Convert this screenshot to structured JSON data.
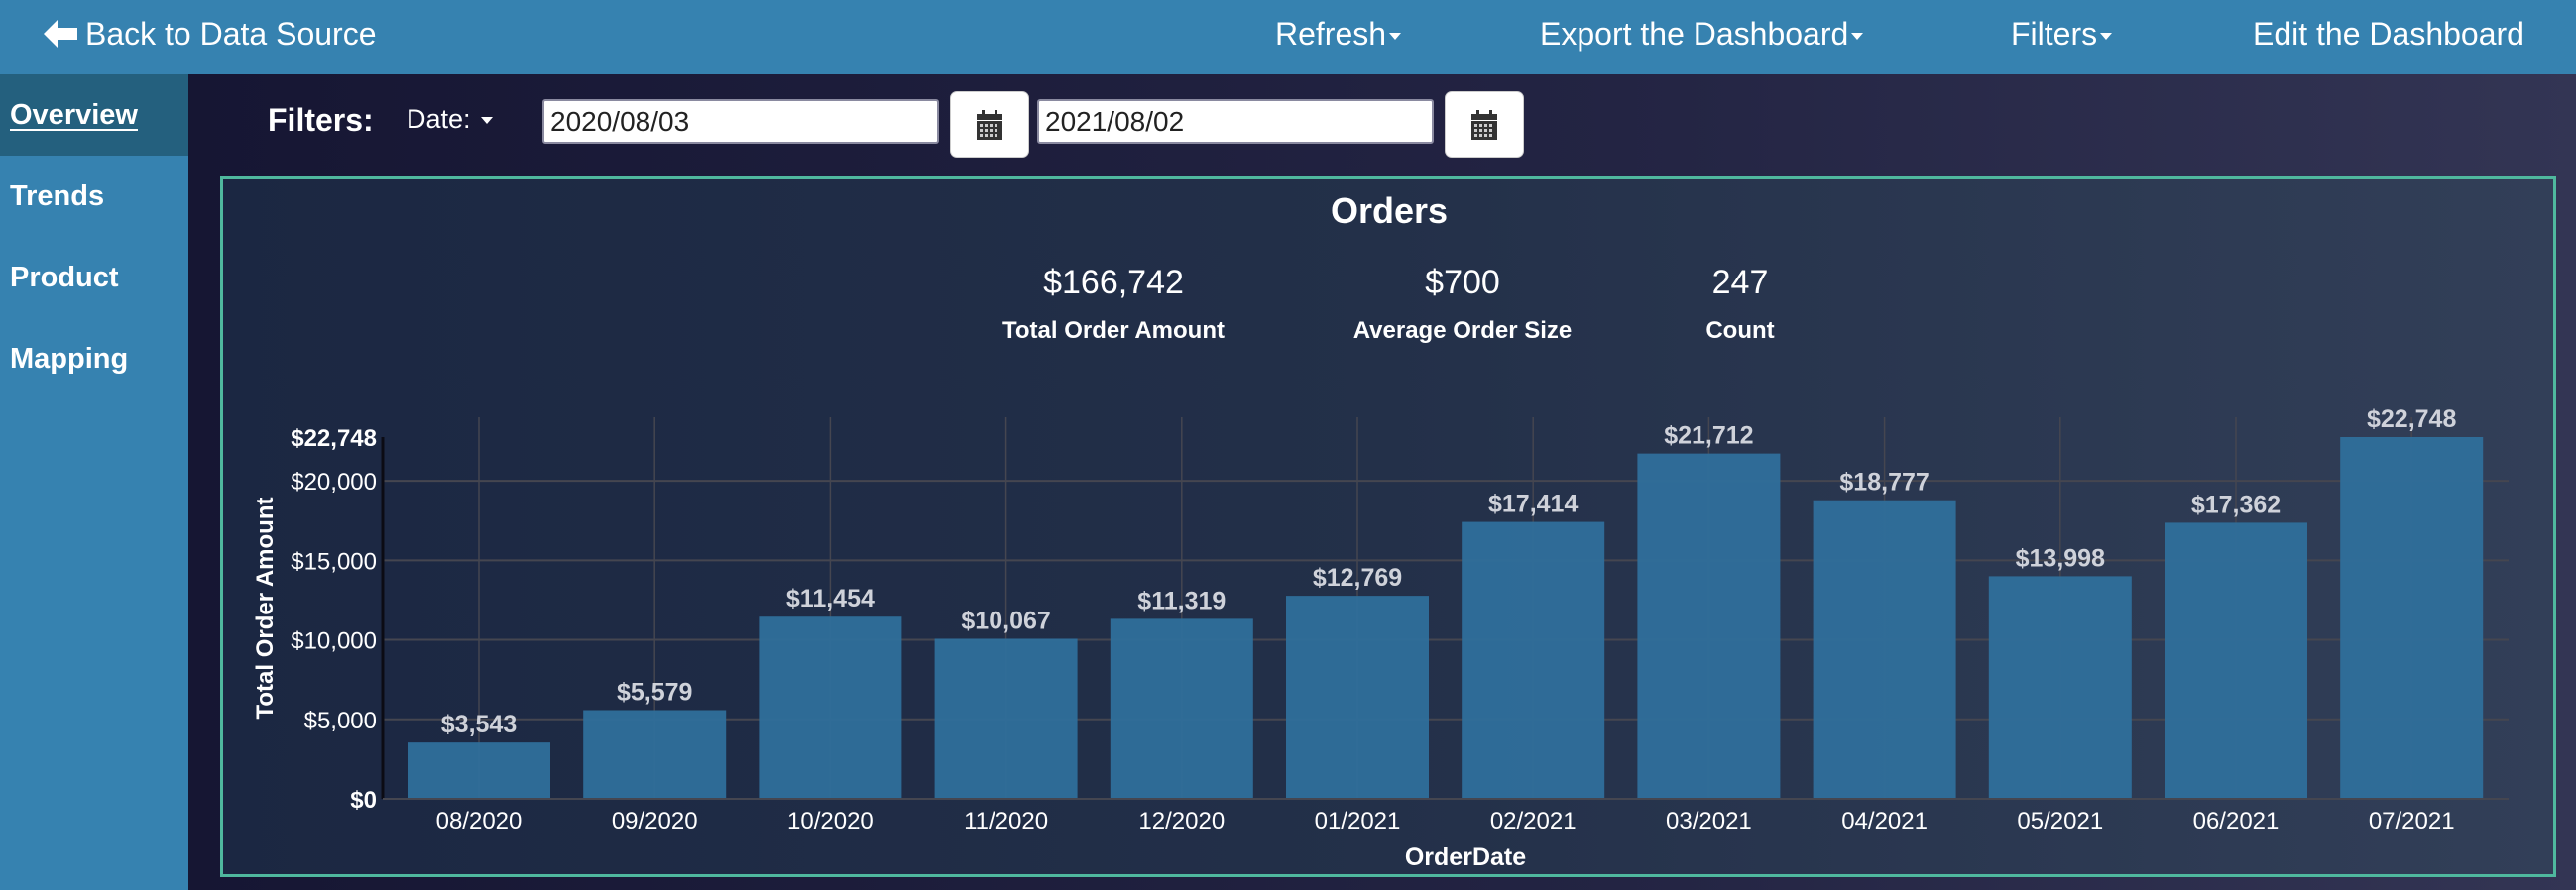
{
  "topbar": {
    "back_label": "Back to Data Source",
    "refresh_label": "Refresh",
    "export_label": "Export the Dashboard",
    "filters_label": "Filters",
    "edit_label": "Edit the Dashboard"
  },
  "sidebar": {
    "items": [
      {
        "label": "Overview",
        "active": true
      },
      {
        "label": "Trends",
        "active": false
      },
      {
        "label": "Product",
        "active": false
      },
      {
        "label": "Mapping",
        "active": false
      }
    ]
  },
  "filters": {
    "label": "Filters:",
    "date_dropdown": "Date:",
    "start_date": "2020/08/03",
    "end_date": "2021/08/02"
  },
  "kpis": [
    {
      "value": "$166,742",
      "label": "Total Order Amount"
    },
    {
      "value": "$700",
      "label": "Average Order Size"
    },
    {
      "value": "247",
      "label": "Count"
    }
  ],
  "colors": {
    "header": "#3682b0",
    "sidebar_active": "#24607e",
    "bar": "#2f6f9b",
    "panel_border": "#4fb89e"
  },
  "chart_data": {
    "type": "bar",
    "title": "Orders",
    "xlabel": "OrderDate",
    "ylabel": "Total Order Amount",
    "categories": [
      "08/2020",
      "09/2020",
      "10/2020",
      "11/2020",
      "12/2020",
      "01/2021",
      "02/2021",
      "03/2021",
      "04/2021",
      "05/2021",
      "06/2021",
      "07/2021"
    ],
    "values": [
      3543,
      5579,
      11454,
      10067,
      11319,
      12769,
      17414,
      21712,
      18777,
      13998,
      17362,
      22748
    ],
    "value_labels": [
      "$3,543",
      "$5,579",
      "$11,454",
      "$10,067",
      "$11,319",
      "$12,769",
      "$17,414",
      "$21,712",
      "$18,777",
      "$13,998",
      "$17,362",
      "$22,748"
    ],
    "ylim": [
      0,
      22748
    ],
    "yticks": [
      0,
      5000,
      10000,
      15000,
      20000,
      22748
    ],
    "ytick_labels": [
      "$0",
      "$5,000",
      "$10,000",
      "$15,000",
      "$20,000",
      "$22,748"
    ],
    "grid": true,
    "legend": "none"
  }
}
